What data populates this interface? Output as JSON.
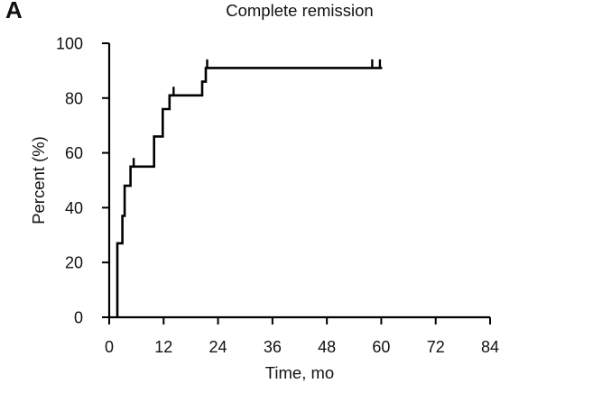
{
  "figure": {
    "background_color": "#ffffff",
    "line_color": "#000000"
  },
  "chart_data": {
    "type": "line",
    "subtype": "kaplan-meier-step",
    "panel_label": "A",
    "title": "Complete remission",
    "xlabel": "Time, mo",
    "ylabel": "Percent (%)",
    "xlim": [
      0,
      84
    ],
    "ylim": [
      0,
      100
    ],
    "xticks": [
      0,
      12,
      24,
      36,
      48,
      60,
      72,
      84
    ],
    "yticks": [
      0,
      20,
      40,
      60,
      80,
      100
    ],
    "grid": false,
    "legend": "none",
    "series": [
      {
        "name": "Complete remission",
        "start": {
          "t": 1.8,
          "pct": 0
        },
        "steps": [
          {
            "t": 1.8,
            "pct": 27
          },
          {
            "t": 2.9,
            "pct": 37
          },
          {
            "t": 3.4,
            "pct": 48
          },
          {
            "t": 4.7,
            "pct": 55
          },
          {
            "t": 9.9,
            "pct": 66
          },
          {
            "t": 11.8,
            "pct": 76
          },
          {
            "t": 13.3,
            "pct": 81
          },
          {
            "t": 20.5,
            "pct": 86
          },
          {
            "t": 21.3,
            "pct": 91
          }
        ],
        "censor_marks_t": [
          5.4,
          14.2,
          21.6,
          58.0,
          59.7
        ],
        "end_t": 60.2,
        "end_pct": 91
      }
    ]
  }
}
